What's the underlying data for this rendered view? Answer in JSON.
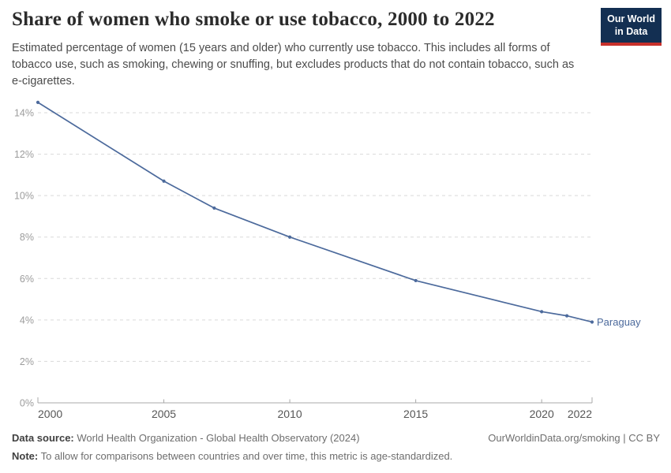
{
  "header": {
    "title": "Share of women who smoke or use tobacco, 2000 to 2022",
    "subtitle": "Estimated percentage of women (15 years and older) who currently use tobacco. This includes all forms of tobacco use, such as smoking, chewing or snuffing, but excludes products that do not contain tobacco, such as e-cigarettes."
  },
  "logo": {
    "line1": "Our World",
    "line2": "in Data"
  },
  "colors": {
    "series_blue": "#4C6A9C",
    "logo_navy": "#132f52",
    "logo_red": "#c7302b",
    "gridline": "#d9d9d9",
    "axis": "#a8a8a8"
  },
  "chart_data": {
    "type": "line",
    "title": "Share of women who smoke or use tobacco, 2000 to 2022",
    "xlabel": "",
    "ylabel": "",
    "xlim": [
      2000,
      2022
    ],
    "ylim": [
      0,
      14.6
    ],
    "yticks": [
      0,
      2,
      4,
      6,
      8,
      10,
      12,
      14
    ],
    "ytick_suffix": "%",
    "xticks": [
      2000,
      2005,
      2010,
      2015,
      2020,
      2022
    ],
    "grid": "horizontal-dashed",
    "legend_position": "end-of-line-label",
    "series": [
      {
        "name": "Paraguay",
        "color": "#4C6A9C",
        "x": [
          2000,
          2005,
          2007,
          2010,
          2015,
          2020,
          2021,
          2022
        ],
        "values": [
          14.5,
          10.7,
          9.4,
          8.0,
          5.9,
          4.4,
          4.2,
          3.9
        ]
      }
    ]
  },
  "footer": {
    "datasource_label": "Data source:",
    "datasource_text": "World Health Organization - Global Health Observatory (2024)",
    "link_text": "OurWorldinData.org/smoking | CC BY",
    "note_label": "Note:",
    "note_text": "To allow for comparisons between countries and over time, this metric is age-standardized."
  }
}
